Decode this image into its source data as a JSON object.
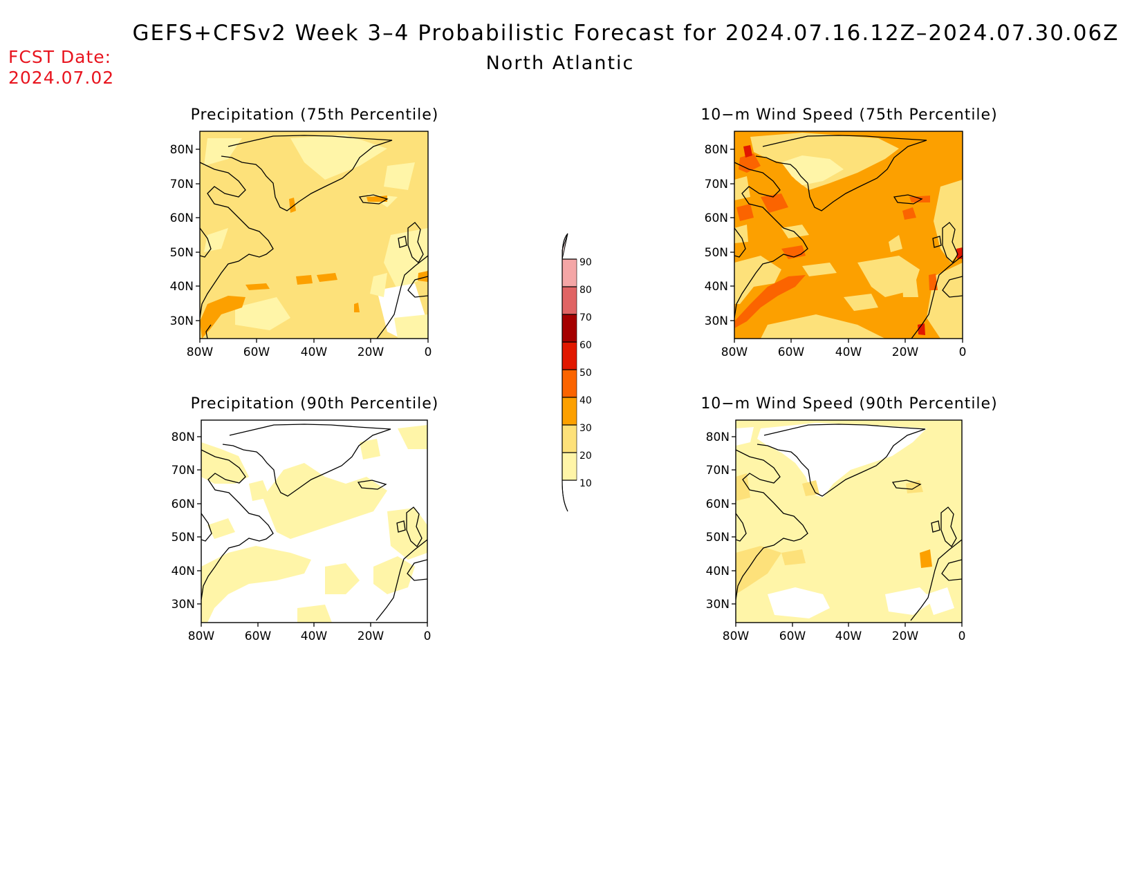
{
  "header": {
    "title": "GEFS+CFSv2 Week 3–4 Probabilistic Forecast for 2024.07.16.12Z–2024.07.30.06Z",
    "region": "North Atlantic",
    "fcst_label": "FCST Date:",
    "fcst_date": "2024.07.02"
  },
  "palette": {
    "10": "#fff5a8",
    "20": "#fde17a",
    "30": "#fca000",
    "40": "#fb6400",
    "50": "#e11800",
    "60": "#a50000",
    "70": "#e06464",
    "80": "#f4a6a6",
    "90": "#ffe8e8",
    "coast": "#000000"
  },
  "maps": [
    {
      "id": "precip75",
      "title": "Precipitation (75th Percentile)",
      "lat_ticks": [
        "80N",
        "70N",
        "60N",
        "50N",
        "40N",
        "30N"
      ],
      "lon_ticks": [
        "80W",
        "60W",
        "40W",
        "20W",
        "0"
      ],
      "base": "20"
    },
    {
      "id": "wind75",
      "title": "10−m Wind Speed (75th Percentile)",
      "lat_ticks": [
        "80N",
        "70N",
        "60N",
        "50N",
        "40N",
        "30N"
      ],
      "lon_ticks": [
        "80W",
        "60W",
        "40W",
        "20W",
        "0"
      ],
      "base": "30"
    },
    {
      "id": "precip90",
      "title": "Precipitation (90th Percentile)",
      "lat_ticks": [
        "80N",
        "70N",
        "60N",
        "50N",
        "40N",
        "30N"
      ],
      "lon_ticks": [
        "80W",
        "60W",
        "40W",
        "20W",
        "0"
      ],
      "base": "white"
    },
    {
      "id": "wind90",
      "title": "10−m Wind Speed (90th Percentile)",
      "lat_ticks": [
        "80N",
        "70N",
        "60N",
        "50N",
        "40N",
        "30N"
      ],
      "lon_ticks": [
        "80W",
        "60W",
        "40W",
        "20W",
        "0"
      ],
      "base": "10"
    }
  ],
  "colorbar": {
    "labels": [
      "90",
      "80",
      "70",
      "60",
      "50",
      "40",
      "30",
      "20",
      "10"
    ]
  }
}
